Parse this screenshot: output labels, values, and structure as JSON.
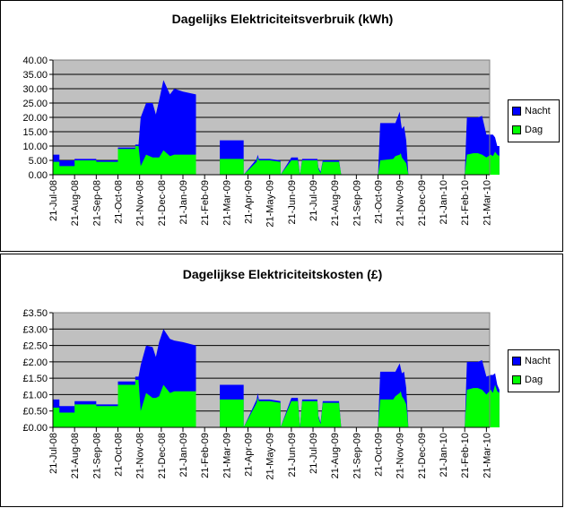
{
  "colors": {
    "nacht": "#0000ff",
    "dag": "#00ff00",
    "plot_bg": "#c0c0c0",
    "grid": "#000000"
  },
  "legend": {
    "nacht": "Nacht",
    "dag": "Dag"
  },
  "chart_data": [
    {
      "type": "area",
      "stacked": true,
      "title": "Dagelijks Elektriciteitsverbruik (kWh)",
      "xlabel": "",
      "ylabel": "",
      "ylim": [
        0,
        40
      ],
      "y_ticks": [
        "0.00",
        "5.00",
        "10.00",
        "15.00",
        "20.00",
        "25.00",
        "30.00",
        "35.00",
        "40.00"
      ],
      "grid": "horizontal",
      "legend_position": "right",
      "x_ticks": [
        "21-Jul-08",
        "21-Aug-08",
        "21-Sep-08",
        "21-Oct-08",
        "21-Nov-08",
        "21-Dec-08",
        "21-Jan-09",
        "21-Feb-09",
        "21-Mar-09",
        "21-Apr-09",
        "21-May-09",
        "21-Jun-09",
        "21-Jul-09",
        "21-Aug-09",
        "21-Sep-09",
        "21-Oct-09",
        "21-Nov-09",
        "21-Dec-09",
        "21-Jan-10",
        "21-Feb-10",
        "21-Mar-10"
      ],
      "x": [
        0.0,
        0.3,
        0.3,
        1.0,
        1.0,
        2.0,
        2.0,
        3.0,
        3.0,
        3.8,
        3.8,
        3.95,
        4.05,
        4.3,
        4.6,
        4.75,
        4.9,
        5.1,
        5.4,
        5.6,
        6.0,
        6.6,
        6.6,
        7.7,
        7.7,
        8.8,
        8.8,
        9.4,
        9.45,
        9.5,
        10.0,
        10.5,
        10.5,
        11.0,
        11.3,
        11.4,
        11.5,
        12.2,
        12.25,
        12.35,
        12.45,
        13.2,
        13.3,
        15.0,
        15.1,
        15.7,
        15.8,
        16.0,
        16.05,
        16.1,
        16.2,
        16.3,
        16.4,
        18.0,
        19.0,
        19.1,
        19.4,
        19.6,
        19.8,
        20.0,
        20.2,
        20.3,
        20.4,
        20.5,
        20.6
      ],
      "series": [
        {
          "name": "Dag",
          "values": [
            4.5,
            4.5,
            3.0,
            3.0,
            5.0,
            5.0,
            4.5,
            4.5,
            9.0,
            9.0,
            10.0,
            10.0,
            3.0,
            7.0,
            6.0,
            6.0,
            6.0,
            8.5,
            6.5,
            7.0,
            7.0,
            7.0,
            0.0,
            0.0,
            5.5,
            5.5,
            0.0,
            4.5,
            6.0,
            5.0,
            5.0,
            4.5,
            0.0,
            5.0,
            5.0,
            0.0,
            5.0,
            5.0,
            2.0,
            0.5,
            4.5,
            4.5,
            0.0,
            0.0,
            5.0,
            5.5,
            6.5,
            7.0,
            7.5,
            6.0,
            5.0,
            4.0,
            0.0,
            0.0,
            0.0,
            7.0,
            7.5,
            7.5,
            7.0,
            6.0,
            7.0,
            6.5,
            8.0,
            7.0,
            6.5
          ]
        },
        {
          "name": "Nacht",
          "values": [
            2.5,
            2.5,
            2.0,
            2.0,
            0.5,
            0.5,
            0.5,
            0.5,
            0.5,
            0.5,
            0.5,
            0.5,
            17.0,
            18.0,
            19.0,
            15.0,
            20.0,
            24.5,
            21.5,
            23.0,
            22.0,
            21.0,
            0.0,
            0.0,
            6.5,
            6.5,
            0.0,
            1.0,
            1.0,
            0.5,
            0.5,
            0.5,
            0.0,
            1.0,
            1.0,
            0.0,
            0.5,
            0.5,
            0.5,
            0.5,
            0.5,
            0.5,
            0.0,
            0.0,
            13.0,
            12.5,
            11.5,
            15.0,
            11.0,
            10.0,
            12.0,
            8.0,
            0.0,
            0.0,
            0.0,
            13.0,
            12.5,
            12.5,
            13.5,
            8.0,
            7.0,
            7.5,
            5.0,
            3.0,
            3.5
          ]
        }
      ]
    },
    {
      "type": "area",
      "stacked": true,
      "title": "Dagelijkse Elektriciteitskosten (£)",
      "xlabel": "",
      "ylabel": "",
      "ylim": [
        0,
        3.5
      ],
      "y_ticks": [
        "£0.00",
        "£0.50",
        "£1.00",
        "£1.50",
        "£2.00",
        "£2.50",
        "£3.00",
        "£3.50"
      ],
      "grid": "horizontal",
      "legend_position": "right",
      "x_ticks": [
        "21-Jul-08",
        "21-Aug-08",
        "21-Sep-08",
        "21-Oct-08",
        "21-Nov-08",
        "21-Dec-08",
        "21-Jan-09",
        "21-Feb-09",
        "21-Mar-09",
        "21-Apr-09",
        "21-May-09",
        "21-Jun-09",
        "21-Jul-09",
        "21-Aug-09",
        "21-Sep-09",
        "21-Oct-09",
        "21-Nov-09",
        "21-Dec-09",
        "21-Jan-10",
        "21-Feb-10",
        "21-Mar-10"
      ],
      "x": [
        0.0,
        0.3,
        0.3,
        1.0,
        1.0,
        2.0,
        2.0,
        3.0,
        3.0,
        3.8,
        3.8,
        3.95,
        4.05,
        4.3,
        4.6,
        4.75,
        4.9,
        5.1,
        5.4,
        5.6,
        6.0,
        6.6,
        6.6,
        7.7,
        7.7,
        8.8,
        8.8,
        9.4,
        9.45,
        9.5,
        10.0,
        10.5,
        10.5,
        11.0,
        11.3,
        11.4,
        11.5,
        12.2,
        12.25,
        12.35,
        12.45,
        13.2,
        13.3,
        15.0,
        15.1,
        15.7,
        15.8,
        16.0,
        16.05,
        16.1,
        16.2,
        16.3,
        16.4,
        18.0,
        19.0,
        19.1,
        19.4,
        19.6,
        19.8,
        20.0,
        20.2,
        20.3,
        20.4,
        20.5,
        20.6
      ],
      "series": [
        {
          "name": "Dag",
          "values": [
            0.6,
            0.6,
            0.45,
            0.45,
            0.7,
            0.7,
            0.65,
            0.65,
            1.3,
            1.3,
            1.45,
            1.45,
            0.5,
            1.05,
            0.9,
            0.9,
            0.95,
            1.3,
            1.05,
            1.1,
            1.1,
            1.1,
            0.0,
            0.0,
            0.85,
            0.85,
            0.0,
            0.75,
            0.9,
            0.8,
            0.8,
            0.75,
            0.0,
            0.8,
            0.8,
            0.0,
            0.8,
            0.8,
            0.3,
            0.1,
            0.75,
            0.75,
            0.0,
            0.0,
            0.85,
            0.85,
            0.95,
            1.05,
            1.1,
            0.95,
            0.85,
            0.7,
            0.0,
            0.0,
            0.0,
            1.15,
            1.2,
            1.2,
            1.15,
            1.0,
            1.15,
            1.05,
            1.3,
            1.1,
            1.05
          ]
        },
        {
          "name": "Nacht",
          "values": [
            0.25,
            0.25,
            0.2,
            0.2,
            0.1,
            0.1,
            0.05,
            0.05,
            0.1,
            0.1,
            0.1,
            0.1,
            1.4,
            1.45,
            1.55,
            1.25,
            1.65,
            1.7,
            1.65,
            1.55,
            1.5,
            1.4,
            0.0,
            0.0,
            0.45,
            0.45,
            0.0,
            0.1,
            0.15,
            0.05,
            0.05,
            0.05,
            0.0,
            0.1,
            0.1,
            0.0,
            0.05,
            0.05,
            0.05,
            0.05,
            0.05,
            0.05,
            0.0,
            0.0,
            0.85,
            0.85,
            0.75,
            0.9,
            0.7,
            0.7,
            0.85,
            0.5,
            0.0,
            0.0,
            0.0,
            0.85,
            0.8,
            0.8,
            0.9,
            0.55,
            0.45,
            0.55,
            0.35,
            0.2,
            0.1
          ]
        }
      ]
    }
  ]
}
